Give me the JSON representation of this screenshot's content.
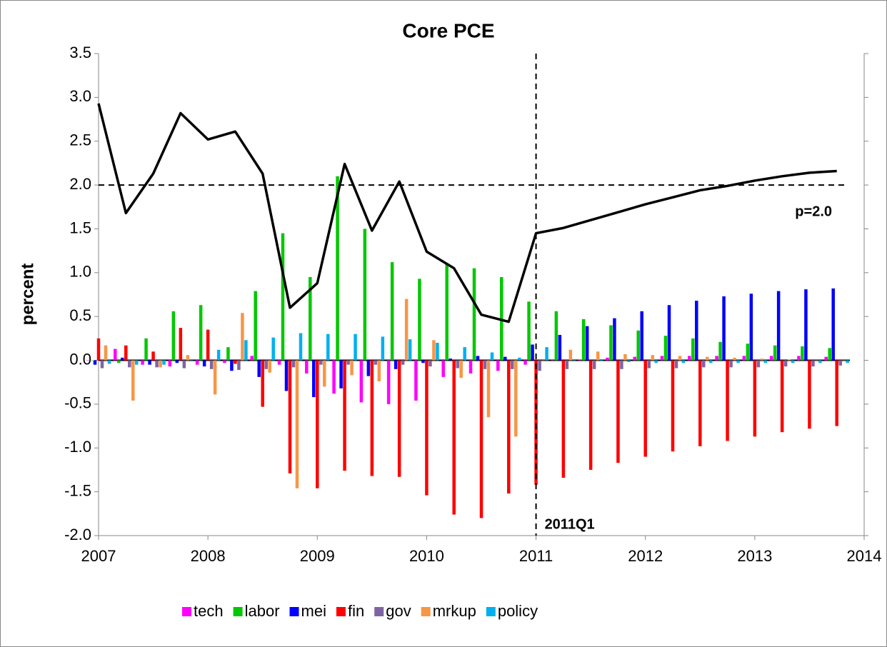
{
  "chart_data": {
    "type": "bar",
    "title": "Core PCE",
    "ylabel": "percent",
    "x": [
      2007,
      2007.25,
      2007.5,
      2007.75,
      2008,
      2008.25,
      2008.5,
      2008.75,
      2009,
      2009.25,
      2009.5,
      2009.75,
      2010,
      2010.25,
      2010.5,
      2010.75,
      2011,
      2011.25,
      2011.5,
      2011.75,
      2012,
      2012.25,
      2012.5,
      2012.75,
      2013,
      2013.25,
      2013.5,
      2013.75
    ],
    "series": [
      {
        "name": "tech",
        "color": "#ff00ff",
        "values": [
          0.0,
          0.13,
          -0.05,
          -0.07,
          -0.05,
          -0.03,
          0.05,
          -0.05,
          -0.15,
          -0.38,
          -0.48,
          -0.5,
          -0.46,
          -0.19,
          -0.15,
          -0.12,
          -0.05,
          0.0,
          0.01,
          0.03,
          0.04,
          0.05,
          0.05,
          0.05,
          0.05,
          0.05,
          0.05,
          0.04
        ]
      },
      {
        "name": "labor",
        "color": "#00c800",
        "values": [
          0.0,
          -0.03,
          0.25,
          0.56,
          0.63,
          0.15,
          0.79,
          1.45,
          0.95,
          2.1,
          1.5,
          1.12,
          0.93,
          1.1,
          1.05,
          0.95,
          0.67,
          0.56,
          0.47,
          0.4,
          0.34,
          0.28,
          0.25,
          0.21,
          0.19,
          0.17,
          0.16,
          0.14
        ]
      },
      {
        "name": "mei",
        "color": "#0000ff",
        "values": [
          -0.05,
          0.03,
          -0.05,
          -0.03,
          -0.07,
          -0.12,
          -0.19,
          -0.35,
          -0.42,
          -0.32,
          -0.18,
          -0.1,
          -0.03,
          0.02,
          0.05,
          0.04,
          0.18,
          0.29,
          0.39,
          0.48,
          0.56,
          0.63,
          0.68,
          0.73,
          0.76,
          0.79,
          0.81,
          0.82
        ]
      },
      {
        "name": "fin",
        "color": "#ff0000",
        "values": [
          0.25,
          0.17,
          0.1,
          0.37,
          0.35,
          -0.04,
          -0.53,
          -1.29,
          -1.46,
          -1.26,
          -1.32,
          -1.33,
          -1.54,
          -1.76,
          -1.8,
          -1.52,
          -1.42,
          -1.34,
          -1.25,
          -1.17,
          -1.1,
          -1.04,
          -0.98,
          -0.92,
          -0.87,
          -0.82,
          -0.78,
          -0.75
        ]
      },
      {
        "name": "gov",
        "color": "#8064a2",
        "values": [
          -0.09,
          -0.08,
          -0.08,
          -0.09,
          -0.1,
          -0.11,
          -0.1,
          -0.08,
          -0.05,
          -0.05,
          -0.05,
          -0.05,
          -0.07,
          -0.09,
          -0.1,
          -0.1,
          -0.12,
          -0.1,
          -0.1,
          -0.1,
          -0.09,
          -0.09,
          -0.08,
          -0.08,
          -0.08,
          -0.07,
          -0.07,
          -0.06
        ]
      },
      {
        "name": "mrkup",
        "color": "#f79646",
        "values": [
          0.17,
          -0.46,
          -0.08,
          0.06,
          -0.39,
          0.54,
          -0.14,
          -1.46,
          -0.3,
          -0.17,
          -0.24,
          0.7,
          0.23,
          -0.2,
          -0.65,
          -0.87,
          0.0,
          0.12,
          0.1,
          0.07,
          0.06,
          0.05,
          0.04,
          0.03,
          0.02,
          0.01,
          0.0,
          0.0
        ]
      },
      {
        "name": "policy",
        "color": "#00b0f0",
        "values": [
          -0.04,
          -0.05,
          -0.05,
          0.0,
          0.12,
          0.23,
          0.26,
          0.31,
          0.3,
          0.3,
          0.27,
          0.24,
          0.2,
          0.15,
          0.09,
          0.03,
          0.15,
          0.0,
          -0.01,
          -0.02,
          -0.03,
          -0.03,
          -0.03,
          -0.03,
          -0.03,
          -0.03,
          -0.03,
          -0.03
        ]
      }
    ],
    "line": {
      "color": "#000000",
      "values": [
        2.93,
        1.68,
        2.13,
        2.82,
        2.52,
        2.61,
        2.13,
        0.6,
        0.88,
        2.24,
        1.48,
        2.04,
        1.24,
        1.05,
        0.52,
        0.44,
        1.45,
        1.51,
        1.6,
        1.69,
        1.78,
        1.86,
        1.94,
        1.99,
        2.05,
        2.1,
        2.14,
        2.16
      ]
    },
    "hline": {
      "value": 2.0,
      "label": "p=2.0"
    },
    "vline": {
      "value": 2011,
      "label": "2011Q1"
    },
    "xlim": [
      2007,
      2014
    ],
    "xticks": [
      2007,
      2008,
      2009,
      2010,
      2011,
      2012,
      2013,
      2014
    ],
    "ylim": [
      -2.0,
      3.5
    ],
    "yticks": [
      {
        "value": -2.0,
        "label": "-2.0"
      },
      {
        "value": -1.5,
        "label": "-1.5"
      },
      {
        "value": -1.0,
        "label": "-1.0"
      },
      {
        "value": -0.5,
        "label": "-0.5"
      },
      {
        "value": 0.0,
        "label": "0.0"
      },
      {
        "value": 0.5,
        "label": "0.5"
      },
      {
        "value": 1.0,
        "label": "1.0"
      },
      {
        "value": 1.5,
        "label": "1.5"
      },
      {
        "value": 2.0,
        "label": "2.0"
      },
      {
        "value": 2.5,
        "label": "2.5"
      },
      {
        "value": 3.0,
        "label": "3.0"
      },
      {
        "value": 3.5,
        "label": "3.5"
      }
    ],
    "legend": "bottom"
  }
}
